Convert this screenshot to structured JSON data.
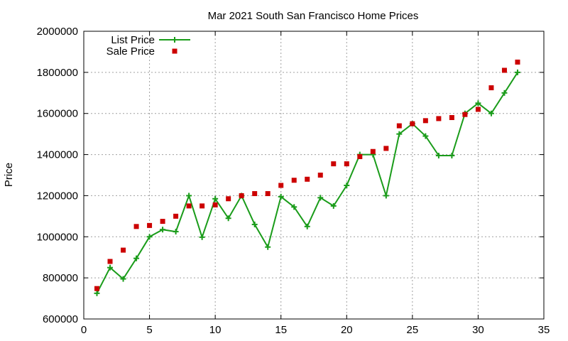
{
  "chart_data": {
    "type": "line",
    "title": "Mar 2021 South San Francisco Home Prices",
    "xlabel": "",
    "ylabel": "Price",
    "xlim": [
      0,
      35
    ],
    "ylim": [
      600000,
      2000000
    ],
    "x_ticks": [
      "0",
      "5",
      "10",
      "15",
      "20",
      "25",
      "30",
      "35"
    ],
    "y_ticks": [
      "600000",
      "800000",
      "1000000",
      "1200000",
      "1400000",
      "1600000",
      "1800000",
      "2000000"
    ],
    "grid": true,
    "legend_position": "top-left",
    "series": [
      {
        "name": "List Price",
        "style": "line-points",
        "marker": "plus",
        "color": "#1a9c1a",
        "x": [
          1,
          2,
          3,
          4,
          5,
          6,
          7,
          8,
          9,
          10,
          11,
          12,
          13,
          14,
          15,
          16,
          17,
          18,
          19,
          20,
          21,
          22,
          23,
          24,
          25,
          26,
          27,
          28,
          29,
          30,
          31,
          32,
          33
        ],
        "y": [
          725000,
          850000,
          795000,
          895000,
          1000000,
          1035000,
          1025000,
          1200000,
          998000,
          1185000,
          1090000,
          1200000,
          1060000,
          950000,
          1195000,
          1145000,
          1050000,
          1190000,
          1150000,
          1250000,
          1400000,
          1400000,
          1200000,
          1500000,
          1550000,
          1490000,
          1395000,
          1395000,
          1600000,
          1650000,
          1600000,
          1700000,
          1800000
        ]
      },
      {
        "name": "Sale Price",
        "style": "points",
        "marker": "square",
        "color": "#cc0000",
        "x": [
          1,
          2,
          3,
          4,
          5,
          6,
          7,
          8,
          9,
          10,
          11,
          12,
          13,
          14,
          15,
          16,
          17,
          18,
          19,
          20,
          21,
          22,
          23,
          24,
          25,
          26,
          27,
          28,
          29,
          30,
          31,
          32,
          33
        ],
        "y": [
          748000,
          880000,
          935000,
          1050000,
          1055000,
          1075000,
          1100000,
          1150000,
          1150000,
          1155000,
          1185000,
          1200000,
          1210000,
          1210000,
          1250000,
          1275000,
          1280000,
          1300000,
          1355000,
          1355000,
          1390000,
          1415000,
          1430000,
          1540000,
          1550000,
          1565000,
          1575000,
          1580000,
          1595000,
          1620000,
          1725000,
          1810000,
          1850000
        ]
      }
    ]
  }
}
